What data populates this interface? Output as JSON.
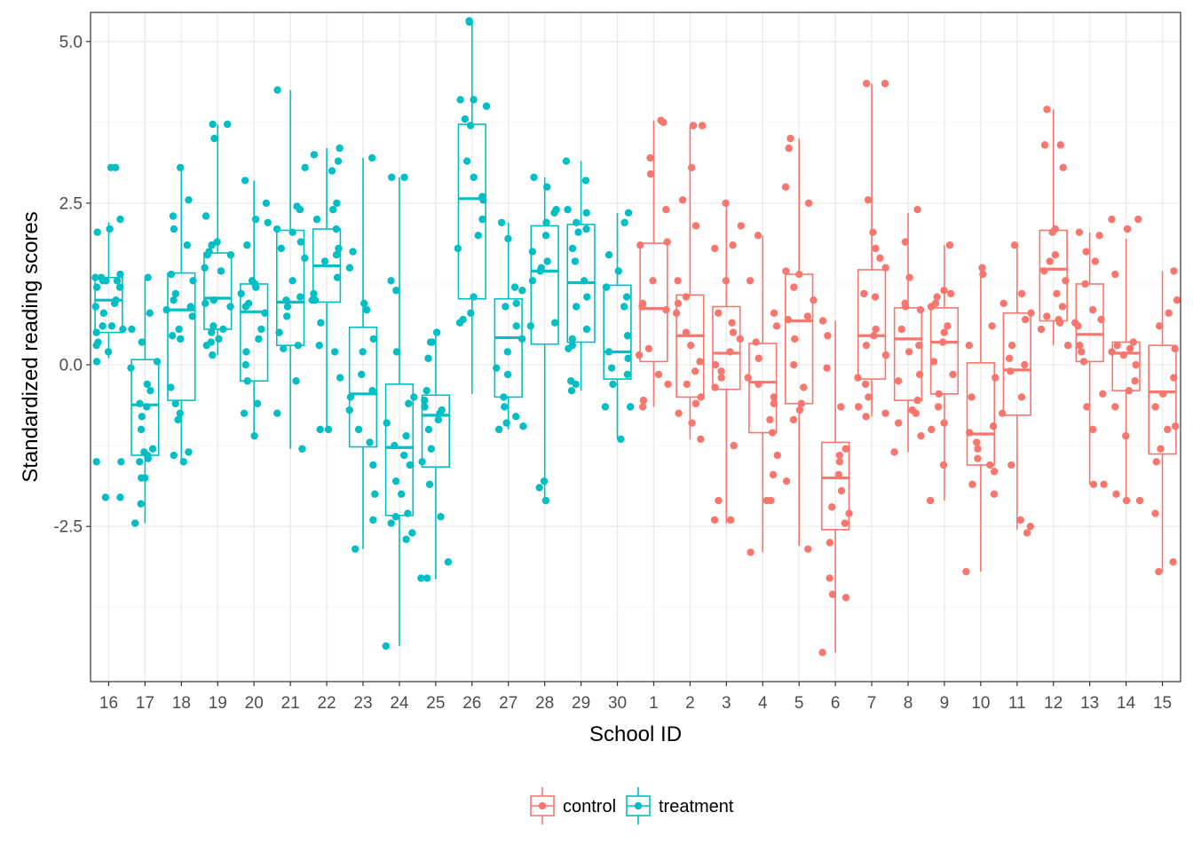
{
  "chart_data": {
    "type": "boxplot",
    "xlabel": "School ID",
    "ylabel": "Standardized reading scores",
    "ylim": [
      -4.9,
      5.45
    ],
    "yticks": [
      -2.5,
      0.0,
      2.5,
      5.0
    ],
    "ytick_labels": [
      "-2.5",
      "0.0",
      "2.5",
      "5.0"
    ],
    "grid": true,
    "legend_position": "bottom",
    "colors": {
      "control": "#F8766D",
      "treatment": "#00BFC4"
    },
    "categories": [
      "16",
      "17",
      "18",
      "19",
      "20",
      "21",
      "22",
      "23",
      "24",
      "25",
      "26",
      "27",
      "28",
      "29",
      "30",
      "1",
      "2",
      "3",
      "4",
      "5",
      "6",
      "7",
      "8",
      "9",
      "10",
      "11",
      "12",
      "13",
      "14",
      "15"
    ],
    "series": [
      {
        "name": "treatment",
        "boxes": [
          {
            "school": "16",
            "whisker_low": 0.1,
            "q1": 0.5,
            "median": 1.0,
            "q3": 1.35,
            "whisker_high": 2.2,
            "points": [
              3.05,
              3.05,
              2.25,
              2.1,
              2.05,
              1.4,
              1.35,
              1.35,
              1.3,
              1.3,
              1.3,
              1.2,
              1.2,
              1.0,
              0.95,
              0.9,
              0.8,
              0.6,
              0.6,
              0.55,
              0.5,
              0.35,
              0.3,
              0.2,
              0.05,
              -1.5,
              -1.5,
              -2.05,
              -2.05
            ]
          },
          {
            "school": "17",
            "whisker_low": -2.45,
            "q1": -1.4,
            "median": -0.62,
            "q3": 0.08,
            "whisker_high": 1.35,
            "points": [
              1.35,
              0.8,
              0.55,
              0.35,
              0.05,
              -0.05,
              -0.3,
              -0.4,
              -0.6,
              -0.65,
              -0.8,
              -1.0,
              -1.3,
              -1.35,
              -1.4,
              -1.45,
              -1.5,
              -1.75,
              -1.75,
              -2.15,
              -2.45
            ]
          },
          {
            "school": "18",
            "whisker_low": -1.5,
            "q1": -0.55,
            "median": 0.85,
            "q3": 1.42,
            "whisker_high": 3.05,
            "points": [
              3.05,
              2.55,
              2.3,
              2.1,
              1.85,
              1.4,
              1.3,
              1.1,
              1.0,
              0.9,
              0.85,
              0.75,
              0.55,
              0.45,
              0.4,
              -0.35,
              -0.6,
              -0.75,
              -0.85,
              -1.35,
              -1.4,
              -1.5
            ]
          },
          {
            "school": "19",
            "whisker_low": 0.15,
            "q1": 0.55,
            "median": 1.03,
            "q3": 1.73,
            "whisker_high": 3.72,
            "points": [
              3.72,
              3.72,
              3.5,
              2.3,
              1.9,
              1.85,
              1.75,
              1.7,
              1.7,
              1.5,
              1.45,
              1.0,
              0.95,
              0.9,
              0.6,
              0.55,
              0.5,
              0.4,
              0.35,
              0.3,
              0.15
            ]
          },
          {
            "school": "20",
            "whisker_low": -1.1,
            "q1": -0.25,
            "median": 0.82,
            "q3": 1.25,
            "whisker_high": 2.85,
            "points": [
              2.85,
              2.5,
              2.25,
              2.2,
              1.85,
              1.3,
              1.25,
              1.2,
              1.1,
              0.95,
              0.9,
              0.8,
              0.55,
              0.4,
              0.2,
              0.0,
              -0.25,
              -0.6,
              -0.75,
              -1.1
            ]
          },
          {
            "school": "21",
            "whisker_low": -1.3,
            "q1": 0.3,
            "median": 0.97,
            "q3": 2.08,
            "whisker_high": 4.25,
            "points": [
              4.25,
              3.05,
              2.45,
              2.4,
              2.1,
              2.05,
              1.9,
              1.8,
              1.65,
              1.3,
              1.05,
              1.0,
              0.9,
              0.75,
              0.5,
              0.3,
              0.25,
              -0.25,
              -0.75,
              -1.3
            ]
          },
          {
            "school": "22",
            "whisker_low": -1.0,
            "q1": 0.97,
            "median": 1.53,
            "q3": 2.1,
            "whisker_high": 3.35,
            "points": [
              3.35,
              3.25,
              3.15,
              3.0,
              2.5,
              2.4,
              2.25,
              2.1,
              1.8,
              1.7,
              1.6,
              1.35,
              1.1,
              1.0,
              1.0,
              0.65,
              0.3,
              0.2,
              -0.2,
              -1.0,
              -1.0
            ]
          },
          {
            "school": "23",
            "whisker_low": -2.85,
            "q1": -1.27,
            "median": -0.45,
            "q3": 0.58,
            "whisker_high": 3.2,
            "points": [
              3.2,
              1.75,
              1.5,
              0.95,
              0.85,
              0.4,
              0.2,
              -0.15,
              -0.4,
              -0.5,
              -0.7,
              -1.0,
              -1.2,
              -1.55,
              -2.0,
              -2.4,
              -2.85
            ]
          },
          {
            "school": "24",
            "whisker_low": -4.35,
            "q1": -2.33,
            "median": -1.28,
            "q3": -0.3,
            "whisker_high": 2.9,
            "points": [
              2.9,
              2.9,
              1.3,
              1.15,
              0.2,
              -0.5,
              -0.6,
              -0.9,
              -1.1,
              -1.25,
              -1.4,
              -1.55,
              -1.8,
              -2.0,
              -2.3,
              -2.35,
              -2.45,
              -2.6,
              -2.7,
              -4.35
            ]
          },
          {
            "school": "25",
            "whisker_low": -3.32,
            "q1": -1.58,
            "median": -0.78,
            "q3": -0.47,
            "whisker_high": 0.5,
            "points": [
              0.5,
              0.35,
              0.35,
              0.1,
              -0.4,
              -0.55,
              -0.65,
              -0.7,
              -0.75,
              -0.85,
              -1.0,
              -1.3,
              -1.5,
              -1.85,
              -2.35,
              -3.05,
              -3.3,
              -3.3
            ]
          },
          {
            "school": "26",
            "whisker_low": -0.45,
            "q1": 1.02,
            "median": 2.57,
            "q3": 3.72,
            "whisker_high": 5.3,
            "points": [
              5.32,
              5.3,
              4.1,
              4.1,
              4.0,
              3.8,
              3.7,
              3.15,
              2.9,
              2.6,
              2.55,
              2.25,
              2.0,
              1.8,
              1.05,
              0.8,
              0.7,
              0.65
            ]
          },
          {
            "school": "27",
            "whisker_low": -1.0,
            "q1": -0.5,
            "median": 0.42,
            "q3": 1.02,
            "whisker_high": 2.2,
            "points": [
              2.2,
              1.95,
              1.2,
              1.15,
              0.95,
              0.9,
              0.6,
              0.4,
              0.2,
              -0.05,
              -0.15,
              -0.5,
              -0.65,
              -0.8,
              -0.9,
              -0.95,
              -1.0
            ]
          },
          {
            "school": "28",
            "whisker_low": -2.1,
            "q1": 0.32,
            "median": 1.45,
            "q3": 2.15,
            "whisker_high": 2.9,
            "points": [
              2.9,
              2.75,
              2.4,
              2.35,
              2.2,
              2.0,
              1.75,
              1.6,
              1.5,
              1.45,
              1.3,
              0.65,
              0.6,
              -1.8,
              -1.9,
              -2.1
            ]
          },
          {
            "school": "29",
            "whisker_low": -0.4,
            "q1": 0.35,
            "median": 1.27,
            "q3": 2.17,
            "whisker_high": 3.15,
            "points": [
              3.15,
              2.85,
              2.4,
              2.35,
              2.2,
              2.1,
              2.05,
              1.8,
              1.6,
              1.3,
              1.05,
              0.9,
              0.55,
              0.4,
              0.3,
              0.25,
              -0.25,
              -0.3,
              -0.4
            ]
          },
          {
            "school": "30",
            "whisker_low": -1.15,
            "q1": -0.22,
            "median": 0.2,
            "q3": 1.23,
            "whisker_high": 2.35,
            "points": [
              2.35,
              2.2,
              1.7,
              1.45,
              1.2,
              1.05,
              0.9,
              0.45,
              0.2,
              0.1,
              -0.05,
              -0.15,
              -0.3,
              -0.65,
              -0.65,
              -1.15
            ]
          }
        ]
      },
      {
        "name": "control",
        "boxes": [
          {
            "school": "1",
            "whisker_low": -0.65,
            "q1": 0.05,
            "median": 0.87,
            "q3": 1.88,
            "whisker_high": 3.78,
            "points": [
              3.78,
              3.75,
              3.2,
              2.95,
              2.4,
              1.9,
              1.85,
              1.3,
              0.95,
              0.9,
              0.85,
              0.25,
              0.15,
              -0.15,
              -0.3,
              -0.55,
              -0.65
            ]
          },
          {
            "school": "2",
            "whisker_low": -1.15,
            "q1": -0.5,
            "median": 0.45,
            "q3": 1.08,
            "whisker_high": 3.7,
            "points": [
              3.7,
              3.7,
              3.05,
              2.55,
              2.15,
              1.3,
              1.05,
              0.95,
              0.8,
              0.5,
              0.3,
              0.05,
              -0.1,
              -0.3,
              -0.5,
              -0.6,
              -0.75,
              -0.9,
              -1.15
            ]
          },
          {
            "school": "3",
            "whisker_low": -2.45,
            "q1": -0.38,
            "median": 0.18,
            "q3": 0.9,
            "whisker_high": 2.5,
            "points": [
              2.5,
              2.15,
              1.85,
              1.8,
              1.3,
              0.8,
              0.65,
              0.5,
              0.4,
              0.2,
              0.0,
              -0.1,
              -0.2,
              -0.35,
              -1.25,
              -2.1,
              -2.4,
              -2.4
            ]
          },
          {
            "school": "4",
            "whisker_low": -2.9,
            "q1": -1.05,
            "median": -0.27,
            "q3": 0.33,
            "whisker_high": 2.0,
            "points": [
              2.0,
              1.3,
              0.8,
              0.6,
              0.35,
              0.1,
              -0.2,
              -0.3,
              -0.5,
              -0.6,
              -0.85,
              -1.05,
              -1.4,
              -1.7,
              -2.1,
              -2.1,
              -2.9
            ]
          },
          {
            "school": "5",
            "whisker_low": -2.8,
            "q1": -0.6,
            "median": 0.68,
            "q3": 1.4,
            "whisker_high": 3.5,
            "points": [
              3.5,
              3.35,
              2.75,
              2.5,
              1.45,
              1.4,
              1.2,
              1.0,
              0.75,
              0.7,
              0.4,
              0.0,
              -0.35,
              -0.6,
              -0.7,
              -0.85,
              -1.8,
              -2.85
            ]
          },
          {
            "school": "6",
            "whisker_low": -4.45,
            "q1": -2.55,
            "median": -1.75,
            "q3": -1.2,
            "whisker_high": 0.68,
            "points": [
              0.68,
              0.45,
              -0.05,
              -0.65,
              -1.3,
              -1.4,
              -1.5,
              -1.7,
              -1.95,
              -2.2,
              -2.3,
              -2.45,
              -2.75,
              -3.3,
              -3.55,
              -3.6,
              -4.45
            ]
          },
          {
            "school": "7",
            "whisker_low": -0.8,
            "q1": -0.22,
            "median": 0.45,
            "q3": 1.47,
            "whisker_high": 4.35,
            "points": [
              4.35,
              4.35,
              2.55,
              2.05,
              1.8,
              1.65,
              1.5,
              1.1,
              1.05,
              0.55,
              0.45,
              0.3,
              0.15,
              -0.2,
              -0.3,
              -0.5,
              -0.65,
              -0.75,
              -0.8
            ]
          },
          {
            "school": "8",
            "whisker_low": -1.35,
            "q1": -0.55,
            "median": 0.4,
            "q3": 0.88,
            "whisker_high": 2.35,
            "points": [
              2.4,
              1.9,
              1.35,
              0.95,
              0.9,
              0.85,
              0.55,
              0.3,
              0.2,
              -0.15,
              -0.25,
              -0.55,
              -0.7,
              -0.75,
              -0.9,
              -1.1,
              -1.35
            ]
          },
          {
            "school": "9",
            "whisker_low": -2.1,
            "q1": -0.45,
            "median": 0.35,
            "q3": 0.88,
            "whisker_high": 1.85,
            "points": [
              1.85,
              1.15,
              1.1,
              1.05,
              0.95,
              0.9,
              0.6,
              0.5,
              0.35,
              0.05,
              -0.15,
              -0.45,
              -0.65,
              -0.9,
              -1.0,
              -1.55,
              -2.1
            ]
          },
          {
            "school": "10",
            "whisker_low": -3.2,
            "q1": -1.55,
            "median": -1.07,
            "q3": 0.03,
            "whisker_high": 1.5,
            "points": [
              1.5,
              1.4,
              0.6,
              0.3,
              -0.2,
              -0.5,
              -0.95,
              -1.05,
              -1.2,
              -1.3,
              -1.45,
              -1.55,
              -1.65,
              -1.85,
              -2.0,
              -3.2
            ]
          },
          {
            "school": "11",
            "whisker_low": -2.55,
            "q1": -0.78,
            "median": -0.08,
            "q3": 0.8,
            "whisker_high": 1.85,
            "points": [
              1.85,
              1.1,
              0.95,
              0.8,
              0.7,
              0.3,
              0.1,
              0.0,
              -0.1,
              -0.5,
              -0.75,
              -1.55,
              -2.4,
              -2.5,
              -2.6
            ]
          },
          {
            "school": "12",
            "whisker_low": 0.3,
            "q1": 0.68,
            "median": 1.48,
            "q3": 2.08,
            "whisker_high": 3.95,
            "points": [
              3.95,
              3.4,
              3.4,
              3.05,
              2.1,
              2.05,
              1.7,
              1.6,
              1.45,
              1.3,
              1.1,
              0.9,
              0.75,
              0.7,
              0.65,
              0.55,
              0.3
            ]
          },
          {
            "school": "13",
            "whisker_low": -1.85,
            "q1": 0.05,
            "median": 0.47,
            "q3": 1.25,
            "whisker_high": 2.05,
            "points": [
              2.05,
              2.0,
              1.75,
              1.6,
              1.25,
              0.85,
              0.7,
              0.65,
              0.6,
              0.3,
              0.2,
              0.05,
              -0.45,
              -0.65,
              -1.0,
              -1.85,
              -1.85
            ]
          },
          {
            "school": "14",
            "whisker_low": -2.1,
            "q1": -0.4,
            "median": 0.18,
            "q3": 0.35,
            "whisker_high": 1.95,
            "points": [
              2.25,
              2.25,
              2.1,
              2.1,
              1.4,
              0.35,
              0.3,
              0.25,
              0.2,
              0.15,
              0.0,
              -0.25,
              -0.4,
              -0.65,
              -1.1,
              -2.0,
              -2.1,
              -2.1
            ]
          },
          {
            "school": "15",
            "whisker_low": -3.2,
            "q1": -1.38,
            "median": -0.42,
            "q3": 0.3,
            "whisker_high": 1.45,
            "points": [
              1.45,
              1.0,
              0.8,
              0.6,
              0.25,
              -0.2,
              -0.45,
              -0.65,
              -0.95,
              -1.0,
              -1.3,
              -1.5,
              -2.3,
              -3.05,
              -3.2
            ]
          }
        ]
      }
    ]
  }
}
